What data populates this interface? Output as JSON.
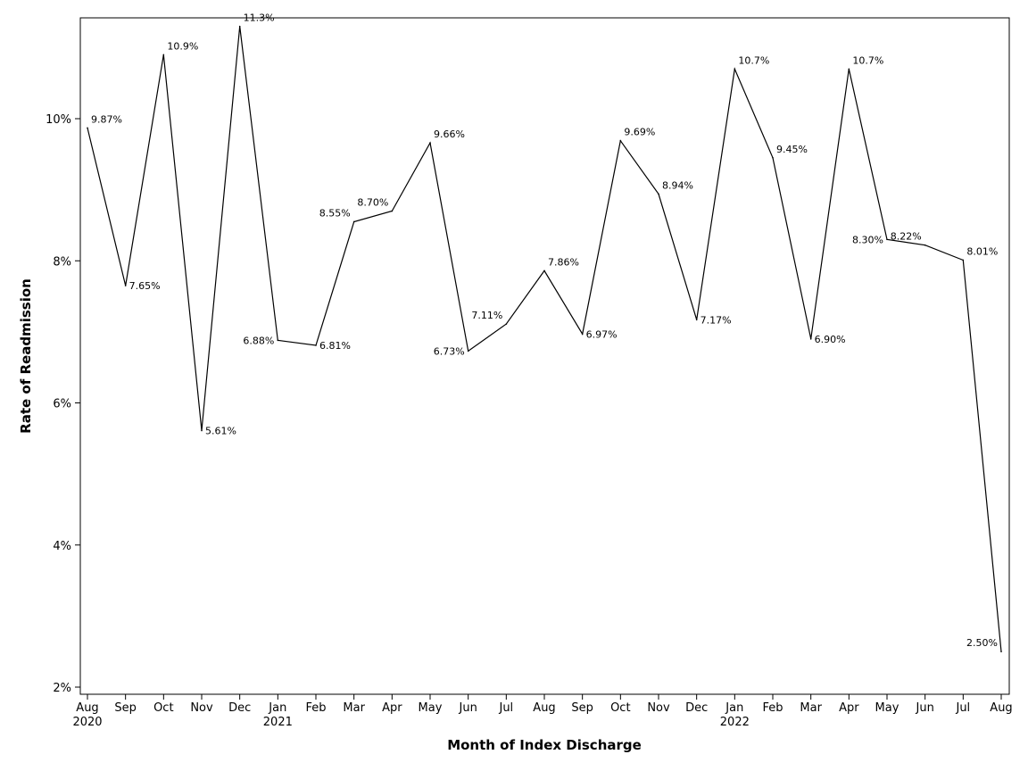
{
  "chart_data": {
    "type": "line",
    "title": "",
    "xlabel": "Month of Index Discharge",
    "ylabel": "Rate of Readmission",
    "ylim": [
      2,
      11.3
    ],
    "yticks": [
      2,
      4,
      6,
      8,
      10
    ],
    "ytick_labels": [
      "2%",
      "4%",
      "6%",
      "8%",
      "10%"
    ],
    "grid": false,
    "legend": "none",
    "line_color": "#000000",
    "x": [
      "Aug",
      "Sep",
      "Oct",
      "Nov",
      "Dec",
      "Jan",
      "Feb",
      "Mar",
      "Apr",
      "May",
      "Jun",
      "Jul",
      "Aug",
      "Sep",
      "Oct",
      "Nov",
      "Dec",
      "Jan",
      "Feb",
      "Mar",
      "Apr",
      "May",
      "Jun",
      "Jul",
      "Aug"
    ],
    "year_labels": [
      "2020",
      "",
      "",
      "",
      "",
      "2021",
      "",
      "",
      "",
      "",
      "",
      "",
      "",
      "",
      "",
      "",
      "",
      "2022",
      "",
      "",
      "",
      "",
      "",
      "",
      ""
    ],
    "series": [
      {
        "values": [
          9.87,
          7.65,
          10.9,
          5.61,
          11.3,
          6.88,
          6.81,
          8.55,
          8.7,
          9.66,
          6.73,
          7.11,
          7.86,
          6.97,
          9.69,
          8.94,
          7.17,
          10.7,
          9.45,
          6.9,
          10.7,
          8.3,
          8.22,
          8.01,
          2.5
        ],
        "labels": [
          "9.87%",
          "7.65%",
          "10.9%",
          "5.61%",
          "11.3%",
          "6.88%",
          "6.81%",
          "8.55%",
          "8.70%",
          "9.66%",
          "6.73%",
          "7.11%",
          "7.86%",
          "6.97%",
          "9.69%",
          "8.94%",
          "7.17%",
          "10.7%",
          "9.45%",
          "6.90%",
          "10.7%",
          "8.30%",
          "8.22%",
          "8.01%",
          "2.50%"
        ],
        "label_side": [
          "r",
          "r",
          "r",
          "r",
          "r",
          "l",
          "r",
          "l",
          "l",
          "r",
          "l",
          "l",
          "r",
          "r",
          "r",
          "r",
          "r",
          "r",
          "r",
          "r",
          "r",
          "l",
          "l",
          "r",
          "l"
        ],
        "label_vpos": [
          "above",
          "mid",
          "above",
          "mid",
          "above",
          "mid",
          "mid",
          "above",
          "above",
          "above",
          "mid",
          "above",
          "above",
          "mid",
          "above",
          "above",
          "mid",
          "above",
          "above",
          "mid",
          "above",
          "mid",
          "above",
          "above",
          "above"
        ]
      }
    ]
  }
}
